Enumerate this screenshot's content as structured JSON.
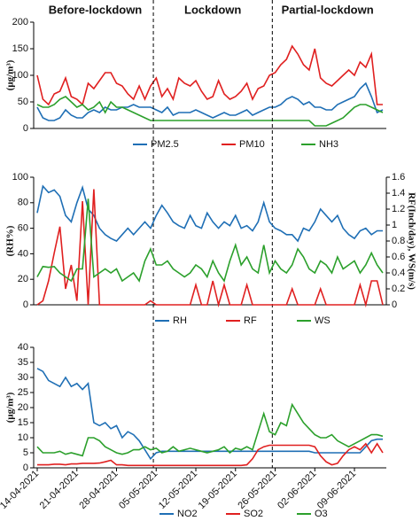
{
  "chart_data": [
    {
      "type": "line",
      "ylabel": "(μg/m³)",
      "ylim": [
        0,
        200
      ],
      "yticks": [
        0,
        50,
        100,
        150,
        200
      ],
      "annotations": [
        {
          "label": "Before-lockdown",
          "from": 0,
          "to": 20.5
        },
        {
          "label": "Lockdown",
          "from": 20.5,
          "to": 41.5
        },
        {
          "label": "Partial-lockdown",
          "from": 41.5,
          "to": 61
        }
      ],
      "dividers": [
        20.5,
        41.5
      ],
      "series": [
        {
          "name": "PM2.5",
          "color": "#1f6fb5",
          "values": [
            40,
            20,
            15,
            15,
            20,
            35,
            25,
            20,
            20,
            30,
            35,
            30,
            40,
            35,
            35,
            40,
            40,
            45,
            40,
            40,
            40,
            35,
            30,
            40,
            25,
            30,
            30,
            30,
            35,
            30,
            25,
            20,
            25,
            30,
            25,
            25,
            30,
            35,
            25,
            30,
            35,
            40,
            40,
            45,
            55,
            60,
            55,
            45,
            50,
            40,
            40,
            35,
            35,
            45,
            50,
            55,
            60,
            75,
            85,
            60,
            30,
            35
          ]
        },
        {
          "name": "PM10",
          "color": "#e02020",
          "values": [
            100,
            55,
            45,
            65,
            70,
            95,
            60,
            55,
            45,
            85,
            75,
            90,
            105,
            105,
            85,
            80,
            65,
            55,
            80,
            55,
            80,
            95,
            60,
            75,
            55,
            95,
            85,
            80,
            90,
            70,
            55,
            60,
            90,
            65,
            55,
            60,
            70,
            85,
            55,
            75,
            80,
            100,
            105,
            120,
            130,
            155,
            140,
            120,
            110,
            150,
            95,
            85,
            80,
            90,
            100,
            110,
            100,
            125,
            115,
            140,
            45,
            45
          ]
        },
        {
          "name": "NH3",
          "color": "#2ca02c",
          "values": [
            45,
            40,
            40,
            45,
            55,
            60,
            50,
            40,
            45,
            35,
            40,
            50,
            30,
            50,
            40,
            40,
            35,
            30,
            25,
            20,
            15,
            15,
            15,
            15,
            15,
            15,
            15,
            15,
            15,
            15,
            15,
            15,
            15,
            15,
            15,
            15,
            15,
            15,
            15,
            15,
            15,
            15,
            15,
            15,
            15,
            15,
            15,
            15,
            15,
            5,
            5,
            5,
            10,
            15,
            20,
            30,
            40,
            45,
            45,
            40,
            35,
            30
          ]
        }
      ]
    },
    {
      "type": "line",
      "ylabel": "(RH%)",
      "y2label": "RF(Inch/day), WS(m/s)",
      "ylim": [
        0,
        100
      ],
      "yticks": [
        0,
        20,
        40,
        60,
        80,
        100
      ],
      "y2lim": [
        0,
        1.6
      ],
      "y2ticks": [
        0,
        0.2,
        0.4,
        0.6,
        0.8,
        1,
        1.2,
        1.4,
        1.6
      ],
      "series": [
        {
          "name": "RH",
          "color": "#1f6fb5",
          "values": [
            72,
            93,
            88,
            90,
            85,
            70,
            65,
            80,
            92,
            75,
            70,
            60,
            55,
            52,
            50,
            55,
            60,
            55,
            60,
            65,
            60,
            70,
            78,
            72,
            65,
            62,
            60,
            70,
            62,
            60,
            72,
            65,
            60,
            65,
            62,
            70,
            60,
            62,
            58,
            65,
            80,
            65,
            60,
            58,
            55,
            55,
            50,
            60,
            58,
            65,
            75,
            70,
            65,
            70,
            60,
            55,
            52,
            58,
            60,
            55,
            58,
            58
          ]
        },
        {
          "name": "RF",
          "color": "#e02020",
          "axis": "y2",
          "values": [
            0,
            0.05,
            0.3,
            0.65,
            0.98,
            0.2,
            0.5,
            0.05,
            1.3,
            0,
            1.45,
            0,
            0,
            0,
            0,
            0,
            0,
            0,
            0,
            0,
            0.05,
            0,
            0,
            0,
            0,
            0,
            0,
            0,
            0.25,
            0,
            0,
            0.3,
            0,
            0.25,
            0,
            0,
            0,
            0.25,
            0,
            0,
            0,
            0,
            0,
            0,
            0,
            0.2,
            0,
            0,
            0,
            0,
            0.2,
            0,
            0,
            0,
            0,
            0,
            0,
            0.25,
            0,
            0.3,
            0.3,
            0
          ]
        },
        {
          "name": "WS",
          "color": "#2ca02c",
          "axis": "y2",
          "values": [
            0.35,
            0.48,
            0.47,
            0.48,
            0.4,
            0.35,
            0.3,
            0.45,
            0.45,
            1.33,
            0.35,
            0.4,
            0.45,
            0.4,
            0.45,
            0.3,
            0.35,
            0.4,
            0.3,
            0.55,
            0.7,
            0.5,
            0.5,
            0.55,
            0.45,
            0.4,
            0.35,
            0.4,
            0.5,
            0.45,
            0.35,
            0.55,
            0.4,
            0.3,
            0.55,
            0.75,
            0.5,
            0.6,
            0.45,
            0.4,
            0.75,
            0.4,
            0.55,
            0.45,
            0.4,
            0.5,
            0.7,
            0.6,
            0.45,
            0.4,
            0.55,
            0.5,
            0.4,
            0.6,
            0.45,
            0.5,
            0.55,
            0.4,
            0.5,
            0.65,
            0.5,
            0.4
          ]
        }
      ]
    },
    {
      "type": "line",
      "ylabel": "(μg/m³)",
      "ylim": [
        0,
        40
      ],
      "yticks": [
        0,
        5,
        10,
        15,
        20,
        25,
        30,
        35,
        40
      ],
      "categories": [
        "14-04-2021",
        null,
        null,
        null,
        null,
        null,
        null,
        "21-04-2021",
        null,
        null,
        null,
        null,
        null,
        null,
        "28-04-2021",
        null,
        null,
        null,
        null,
        null,
        null,
        "05-05-2021",
        null,
        null,
        null,
        null,
        null,
        null,
        "12-05-2021",
        null,
        null,
        null,
        null,
        null,
        null,
        "19-05-2021",
        null,
        null,
        null,
        null,
        null,
        null,
        "26-05-2021",
        null,
        null,
        null,
        null,
        null,
        null,
        "02-06-2021",
        null,
        null,
        null,
        null,
        null,
        null,
        "09-06-2021",
        null,
        null,
        null,
        null,
        null
      ],
      "series": [
        {
          "name": "NO2",
          "color": "#1f6fb5",
          "values": [
            33,
            32,
            29,
            28,
            27,
            30,
            27,
            28,
            26,
            28,
            15,
            14,
            15,
            13,
            14,
            10,
            12,
            11,
            9,
            6,
            3,
            5,
            5.5,
            5.5,
            5.5,
            5.5,
            5.5,
            5.5,
            5.5,
            5.5,
            5.5,
            5.5,
            5.5,
            5.5,
            5.5,
            5.5,
            5.5,
            5.5,
            5.5,
            5.5,
            5.5,
            5.5,
            5.5,
            5.5,
            5.5,
            5.5,
            5.5,
            5.5,
            5.5,
            5,
            5,
            5,
            5,
            5,
            5,
            5,
            5,
            5,
            7,
            9,
            9.5,
            9.5
          ]
        },
        {
          "name": "SO2",
          "color": "#e02020",
          "values": [
            1,
            1,
            1,
            1.2,
            1.2,
            1,
            1.3,
            1.3,
            1.5,
            1.5,
            1.5,
            1.6,
            2,
            2.5,
            1,
            1,
            0.8,
            0.8,
            0.8,
            0.8,
            0.8,
            0.8,
            0.8,
            0.8,
            0.8,
            0.8,
            0.8,
            0.8,
            0.8,
            0.8,
            0.8,
            0.8,
            0.8,
            0.8,
            0.8,
            0.8,
            0.8,
            1,
            3,
            6,
            7,
            7.5,
            7.5,
            7.5,
            7.5,
            7.5,
            7.5,
            7.5,
            7.5,
            7,
            4,
            2,
            1,
            1.5,
            4,
            6,
            7,
            6,
            8,
            5,
            8,
            5
          ]
        },
        {
          "name": "O3",
          "color": "#2ca02c",
          "values": [
            7,
            5,
            5,
            5,
            5.5,
            4.5,
            5,
            4.5,
            4,
            10,
            10,
            9,
            7,
            6,
            5,
            4.5,
            5,
            6,
            6,
            7,
            6,
            6.5,
            5,
            5.5,
            7,
            5.5,
            6,
            6.5,
            6,
            5.5,
            5,
            5.5,
            6,
            7,
            5,
            6.5,
            6,
            7,
            6,
            12,
            18,
            12,
            11,
            15,
            14,
            21,
            18,
            15,
            13,
            11,
            10,
            10,
            11,
            9,
            8,
            7,
            8,
            9,
            10,
            11,
            11,
            10.5
          ]
        }
      ]
    }
  ]
}
